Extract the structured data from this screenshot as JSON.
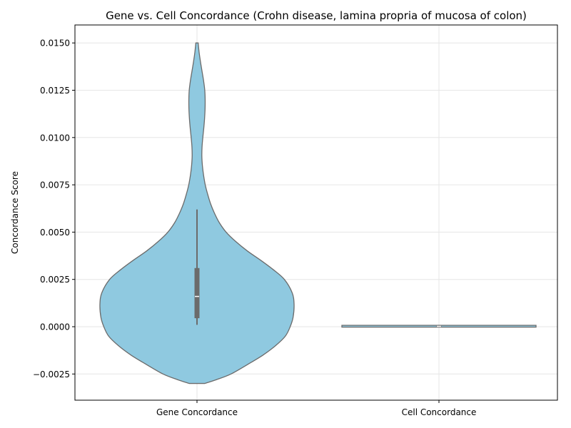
{
  "chart_data": {
    "type": "violin",
    "title": "Gene vs. Cell Concordance (Crohn disease, lamina propria of mucosa of colon)",
    "xlabel": "",
    "ylabel": "Concordance Score",
    "ylim": [
      -0.0038,
      0.016
    ],
    "yticks": [
      -0.0025,
      0.0,
      0.0025,
      0.005,
      0.0075,
      0.01,
      0.0125,
      0.015
    ],
    "ytick_labels": [
      "−0.0025",
      "0.0000",
      "0.0025",
      "0.0050",
      "0.0075",
      "0.0100",
      "0.0125",
      "0.0150"
    ],
    "categories": [
      "Gene Concordance",
      "Cell Concordance"
    ],
    "grid": true,
    "colors": {
      "fill": "#8FC9E0",
      "edge": "#6b6b6b",
      "box": "#6b6b6b",
      "median": "#ffffff",
      "grid": "#e6e6e6"
    },
    "violins": [
      {
        "category": "Gene Concordance",
        "y_range": [
          -0.003,
          0.015
        ],
        "density_profile": [
          [
            -0.003,
            0.08
          ],
          [
            -0.0028,
            0.2
          ],
          [
            -0.0025,
            0.35
          ],
          [
            -0.002,
            0.52
          ],
          [
            -0.0015,
            0.68
          ],
          [
            -0.001,
            0.81
          ],
          [
            -0.0005,
            0.91
          ],
          [
            0.0,
            0.96
          ],
          [
            0.0005,
            0.99
          ],
          [
            0.0012,
            1.0
          ],
          [
            0.0018,
            0.98
          ],
          [
            0.0025,
            0.9
          ],
          [
            0.003,
            0.79
          ],
          [
            0.0035,
            0.66
          ],
          [
            0.004,
            0.52
          ],
          [
            0.0045,
            0.4
          ],
          [
            0.005,
            0.3
          ],
          [
            0.0055,
            0.23
          ],
          [
            0.006,
            0.18
          ],
          [
            0.0065,
            0.14
          ],
          [
            0.007,
            0.11
          ],
          [
            0.0075,
            0.085
          ],
          [
            0.008,
            0.068
          ],
          [
            0.0085,
            0.056
          ],
          [
            0.009,
            0.05
          ],
          [
            0.0095,
            0.052
          ],
          [
            0.01,
            0.06
          ],
          [
            0.0105,
            0.07
          ],
          [
            0.011,
            0.078
          ],
          [
            0.0115,
            0.083
          ],
          [
            0.012,
            0.084
          ],
          [
            0.0125,
            0.08
          ],
          [
            0.013,
            0.068
          ],
          [
            0.0135,
            0.052
          ],
          [
            0.014,
            0.036
          ],
          [
            0.0145,
            0.022
          ],
          [
            0.015,
            0.012
          ]
        ],
        "box": {
          "q1": 0.00045,
          "median": 0.0016,
          "q3": 0.0031,
          "whisker_low": 0.0001,
          "whisker_high": 0.0062
        }
      },
      {
        "category": "Cell Concordance",
        "y_range": [
          0.0,
          5e-05
        ],
        "density_profile": [
          [
            0.0,
            1.0
          ],
          [
            5e-05,
            1.0
          ]
        ],
        "box": {
          "q1": 0.0,
          "median": 2e-05,
          "q3": 5e-05,
          "whisker_low": 0.0,
          "whisker_high": 8e-05
        }
      }
    ]
  }
}
